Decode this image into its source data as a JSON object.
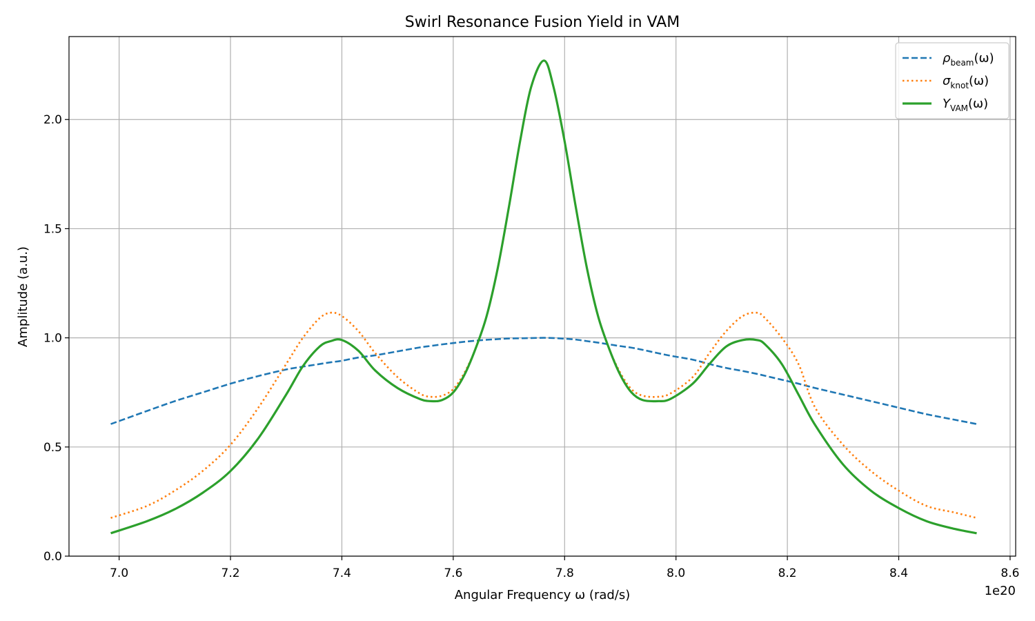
{
  "chart_data": {
    "type": "line",
    "title": "Swirl Resonance Fusion Yield in VAM",
    "xlabel": "Angular Frequency ω (rad/s)",
    "ylabel": "Amplitude (a.u.)",
    "x_offset_label": "1e20",
    "xlim": [
      6.91,
      8.61
    ],
    "ylim": [
      0.0,
      2.38
    ],
    "xticks": [
      7.0,
      7.2,
      7.4,
      7.6,
      7.8,
      8.0,
      8.2,
      8.4,
      8.6
    ],
    "xtick_labels": [
      "7.0",
      "7.2",
      "7.4",
      "7.6",
      "7.8",
      "8.0",
      "8.2",
      "8.4",
      "8.6"
    ],
    "yticks": [
      0.0,
      0.5,
      1.0,
      1.5,
      2.0
    ],
    "ytick_labels": [
      "0.0",
      "0.5",
      "1.0",
      "1.5",
      "2.0"
    ],
    "grid": true,
    "legend_position": "top-right",
    "x": [
      6.985,
      7.05,
      7.1,
      7.15,
      7.2,
      7.25,
      7.3,
      7.33,
      7.36,
      7.38,
      7.4,
      7.43,
      7.46,
      7.5,
      7.54,
      7.56,
      7.58,
      7.6,
      7.62,
      7.64,
      7.66,
      7.68,
      7.7,
      7.72,
      7.74,
      7.763,
      7.78,
      7.8,
      7.82,
      7.84,
      7.86,
      7.88,
      7.9,
      7.92,
      7.94,
      7.967,
      7.99,
      8.03,
      8.06,
      8.09,
      8.12,
      8.145,
      8.16,
      8.19,
      8.22,
      8.25,
      8.3,
      8.35,
      8.4,
      8.45,
      8.5,
      8.54
    ],
    "series": [
      {
        "name": "ρ_beam(ω)",
        "label_main": "ρ",
        "label_sub": "beam",
        "label_arg": "(ω)",
        "color": "#1f77b4",
        "dash": "dashed",
        "values": [
          0.605,
          0.665,
          0.71,
          0.75,
          0.79,
          0.825,
          0.855,
          0.868,
          0.88,
          0.888,
          0.895,
          0.91,
          0.92,
          0.938,
          0.956,
          0.963,
          0.97,
          0.976,
          0.982,
          0.987,
          0.991,
          0.994,
          0.997,
          0.998,
          0.999,
          1.0,
          0.999,
          0.996,
          0.992,
          0.985,
          0.978,
          0.97,
          0.962,
          0.955,
          0.945,
          0.93,
          0.918,
          0.9,
          0.88,
          0.862,
          0.848,
          0.835,
          0.826,
          0.808,
          0.79,
          0.77,
          0.74,
          0.71,
          0.68,
          0.65,
          0.625,
          0.605
        ]
      },
      {
        "name": "σ_knot(ω)",
        "label_main": "σ",
        "label_sub": "knot",
        "label_arg": "(ω)",
        "color": "#ff7f0e",
        "dash": "dotted",
        "values": [
          0.175,
          0.23,
          0.3,
          0.39,
          0.51,
          0.68,
          0.88,
          1.0,
          1.09,
          1.115,
          1.1,
          1.03,
          0.93,
          0.82,
          0.745,
          0.73,
          0.735,
          0.765,
          0.84,
          0.95,
          1.1,
          1.32,
          1.6,
          1.9,
          2.15,
          2.27,
          2.15,
          1.9,
          1.6,
          1.32,
          1.1,
          0.95,
          0.84,
          0.765,
          0.735,
          0.73,
          0.745,
          0.82,
          0.93,
          1.03,
          1.1,
          1.115,
          1.09,
          1.0,
          0.88,
          0.68,
          0.51,
          0.39,
          0.3,
          0.23,
          0.2,
          0.175
        ]
      },
      {
        "name": "Y_VAM(ω)",
        "label_main": "Y",
        "label_sub": "VAM",
        "label_arg": "(ω)",
        "color": "#2ca02c",
        "dash": "solid",
        "values": [
          0.105,
          0.16,
          0.215,
          0.29,
          0.39,
          0.54,
          0.74,
          0.87,
          0.96,
          0.985,
          0.99,
          0.94,
          0.85,
          0.77,
          0.72,
          0.71,
          0.715,
          0.75,
          0.83,
          0.95,
          1.1,
          1.32,
          1.6,
          1.9,
          2.15,
          2.27,
          2.15,
          1.9,
          1.6,
          1.32,
          1.1,
          0.95,
          0.83,
          0.75,
          0.715,
          0.71,
          0.72,
          0.79,
          0.88,
          0.96,
          0.99,
          0.99,
          0.97,
          0.88,
          0.74,
          0.6,
          0.42,
          0.3,
          0.22,
          0.16,
          0.125,
          0.105
        ]
      }
    ]
  }
}
